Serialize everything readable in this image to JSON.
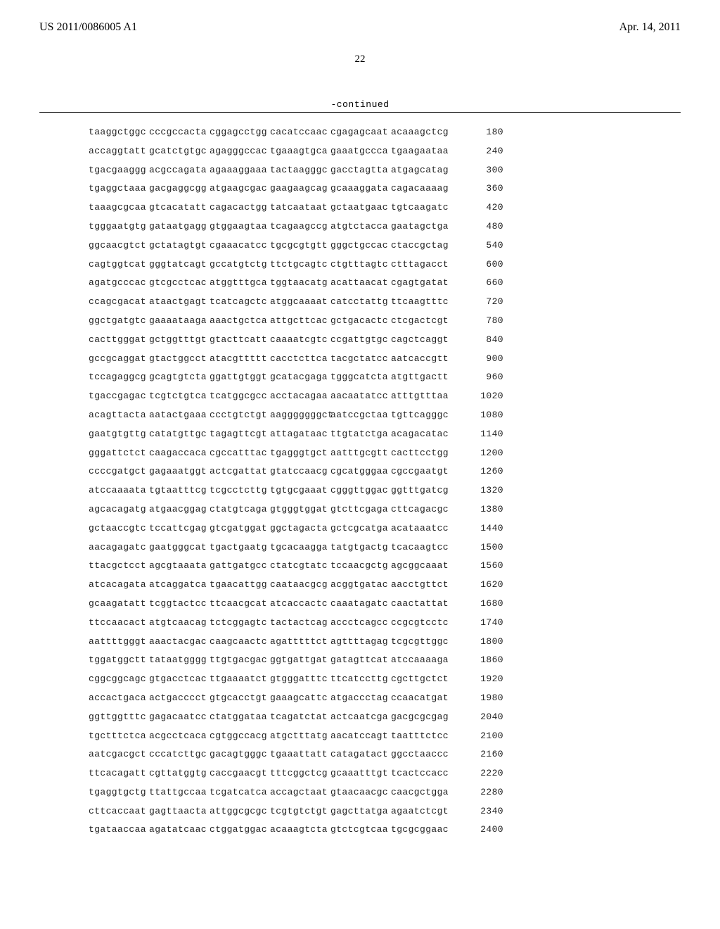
{
  "header": {
    "pub_number": "US 2011/0086005 A1",
    "pub_date": "Apr. 14, 2011"
  },
  "page_number": "22",
  "continued_label": "-continued",
  "sequence": {
    "font_family": "Courier New",
    "text_color": "#222222",
    "rows": [
      {
        "blocks": [
          "taaggctggc",
          "cccgccacta",
          "cggagcctgg",
          "cacatccaac",
          "cgagagcaat",
          "acaaagctcg"
        ],
        "pos": 180
      },
      {
        "blocks": [
          "accaggtatt",
          "gcatctgtgc",
          "agagggccac",
          "tgaaagtgca",
          "gaaatgccca",
          "tgaagaataa"
        ],
        "pos": 240
      },
      {
        "blocks": [
          "tgacgaaggg",
          "acgccagata",
          "agaaaggaaa",
          "tactaagggc",
          "gacctagtta",
          "atgagcatag"
        ],
        "pos": 300
      },
      {
        "blocks": [
          "tgaggctaaa",
          "gacgaggcgg",
          "atgaagcgac",
          "gaagaagcag",
          "gcaaaggata",
          "cagacaaaag"
        ],
        "pos": 360
      },
      {
        "blocks": [
          "taaagcgcaa",
          "gtcacatatt",
          "cagacactgg",
          "tatcaataat",
          "gctaatgaac",
          "tgtcaagatc"
        ],
        "pos": 420
      },
      {
        "blocks": [
          "tgggaatgtg",
          "gataatgagg",
          "gtggaagtaa",
          "tcagaagccg",
          "atgtctacca",
          "gaatagctga"
        ],
        "pos": 480
      },
      {
        "blocks": [
          "ggcaacgtct",
          "gctatagtgt",
          "cgaaacatcc",
          "tgcgcgtgtt",
          "gggctgccac",
          "ctaccgctag"
        ],
        "pos": 540
      },
      {
        "blocks": [
          "cagtggtcat",
          "gggtatcagt",
          "gccatgtctg",
          "ttctgcagtc",
          "ctgtttagtc",
          "ctttagacct"
        ],
        "pos": 600
      },
      {
        "blocks": [
          "agatgcccac",
          "gtcgcctcac",
          "atggtttgca",
          "tggtaacatg",
          "acattaacat",
          "cgagtgatat"
        ],
        "pos": 660
      },
      {
        "blocks": [
          "ccagcgacat",
          "ataactgagt",
          "tcatcagctc",
          "atggcaaaat",
          "catcctattg",
          "ttcaagtttc"
        ],
        "pos": 720
      },
      {
        "blocks": [
          "ggctgatgtc",
          "gaaaataaga",
          "aaactgctca",
          "attgcttcac",
          "gctgacactc",
          "ctcgactcgt"
        ],
        "pos": 780
      },
      {
        "blocks": [
          "cacttgggat",
          "gctggtttgt",
          "gtacttcatt",
          "caaaatcgtc",
          "ccgattgtgc",
          "cagctcaggt"
        ],
        "pos": 840
      },
      {
        "blocks": [
          "gccgcaggat",
          "gtactggcct",
          "atacgttttt",
          "cacctcttca",
          "tacgctatcc",
          "aatcaccgtt"
        ],
        "pos": 900
      },
      {
        "blocks": [
          "tccagaggcg",
          "gcagtgtcta",
          "ggattgtggt",
          "gcatacgaga",
          "tgggcatcta",
          "atgttgactt"
        ],
        "pos": 960
      },
      {
        "blocks": [
          "tgaccgagac",
          "tcgtctgtca",
          "tcatggcgcc",
          "acctacagaa",
          "aacaatatcc",
          "atttgtttaa"
        ],
        "pos": 1020
      },
      {
        "blocks": [
          "acagttacta",
          "aatactgaaa",
          "ccctgtctgt",
          "aagggggggct",
          "aatccgctaa",
          "tgttcagggc"
        ],
        "pos": 1080
      },
      {
        "blocks": [
          "gaatgtgttg",
          "catatgttgc",
          "tagagttcgt",
          "attagataac",
          "ttgtatctga",
          "acagacatac"
        ],
        "pos": 1140
      },
      {
        "blocks": [
          "gggattctct",
          "caagaccaca",
          "cgccatttac",
          "tgagggtgct",
          "aatttgcgtt",
          "cacttcctgg"
        ],
        "pos": 1200
      },
      {
        "blocks": [
          "ccccgatgct",
          "gagaaatggt",
          "actcgattat",
          "gtatccaacg",
          "cgcatgggaa",
          "cgccgaatgt"
        ],
        "pos": 1260
      },
      {
        "blocks": [
          "atccaaaata",
          "tgtaatttcg",
          "tcgcctcttg",
          "tgtgcgaaat",
          "cgggttggac",
          "ggtttgatcg"
        ],
        "pos": 1320
      },
      {
        "blocks": [
          "agcacagatg",
          "atgaacggag",
          "ctatgtcaga",
          "gtgggtggat",
          "gtcttcgaga",
          "cttcagacgc"
        ],
        "pos": 1380
      },
      {
        "blocks": [
          "gctaaccgtc",
          "tccattcgag",
          "gtcgatggat",
          "ggctagacta",
          "gctcgcatga",
          "acataaatcc"
        ],
        "pos": 1440
      },
      {
        "blocks": [
          "aacagagatc",
          "gaatgggcat",
          "tgactgaatg",
          "tgcacaagga",
          "tatgtgactg",
          "tcacaagtcc"
        ],
        "pos": 1500
      },
      {
        "blocks": [
          "ttacgctcct",
          "agcgtaaata",
          "gattgatgcc",
          "ctatcgtatc",
          "tccaacgctg",
          "agcggcaaat"
        ],
        "pos": 1560
      },
      {
        "blocks": [
          "atcacagata",
          "atcaggatca",
          "tgaacattgg",
          "caataacgcg",
          "acggtgatac",
          "aacctgttct"
        ],
        "pos": 1620
      },
      {
        "blocks": [
          "gcaagatatt",
          "tcggtactcc",
          "ttcaacgcat",
          "atcaccactc",
          "caaatagatc",
          "caactattat"
        ],
        "pos": 1680
      },
      {
        "blocks": [
          "ttccaacact",
          "atgtcaacag",
          "tctcggagtc",
          "tactactcag",
          "accctcagcc",
          "ccgcgtcctc"
        ],
        "pos": 1740
      },
      {
        "blocks": [
          "aattttgggt",
          "aaactacgac",
          "caagcaactc",
          "agatttttct",
          "agttttagag",
          "tcgcgttggc"
        ],
        "pos": 1800
      },
      {
        "blocks": [
          "tggatggctt",
          "tataatgggg",
          "ttgtgacgac",
          "ggtgattgat",
          "gatagttcat",
          "atccaaaaga"
        ],
        "pos": 1860
      },
      {
        "blocks": [
          "cggcggcagc",
          "gtgacctcac",
          "ttgaaaatct",
          "gtgggatttc",
          "ttcatccttg",
          "cgcttgctct"
        ],
        "pos": 1920
      },
      {
        "blocks": [
          "accactgaca",
          "actgacccct",
          "gtgcacctgt",
          "gaaagcattc",
          "atgaccctag",
          "ccaacatgat"
        ],
        "pos": 1980
      },
      {
        "blocks": [
          "ggttggtttc",
          "gagacaatcc",
          "ctatggataa",
          "tcagatctat",
          "actcaatcga",
          "gacgcgcgag"
        ],
        "pos": 2040
      },
      {
        "blocks": [
          "tgctttctca",
          "acgcctcaca",
          "cgtggccacg",
          "atgctttatg",
          "aacatccagt",
          "taatttctcc"
        ],
        "pos": 2100
      },
      {
        "blocks": [
          "aatcgacgct",
          "cccatcttgc",
          "gacagtgggc",
          "tgaaattatt",
          "catagatact",
          "ggcctaaccc"
        ],
        "pos": 2160
      },
      {
        "blocks": [
          "ttcacagatt",
          "cgttatggtg",
          "caccgaacgt",
          "tttcggctcg",
          "gcaaatttgt",
          "tcactccacc"
        ],
        "pos": 2220
      },
      {
        "blocks": [
          "tgaggtgctg",
          "ttattgccaa",
          "tcgatcatca",
          "accagctaat",
          "gtaacaacgc",
          "caacgctgga"
        ],
        "pos": 2280
      },
      {
        "blocks": [
          "cttcaccaat",
          "gagttaacta",
          "attggcgcgc",
          "tcgtgtctgt",
          "gagcttatga",
          "agaatctcgt"
        ],
        "pos": 2340
      },
      {
        "blocks": [
          "tgataaccaa",
          "agatatcaac",
          "ctggatggac",
          "acaaagtcta",
          "gtctcgtcaa",
          "tgcgcggaac"
        ],
        "pos": 2400
      }
    ]
  }
}
